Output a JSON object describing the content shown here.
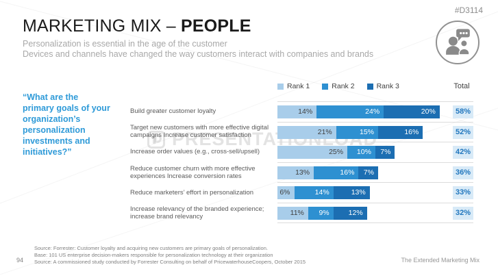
{
  "slide_id": "#D3114",
  "header": {
    "title_regular": "MARKETING MIX – ",
    "title_bold": "PEOPLE",
    "subtitle_line1": "Personalization is essential in the age of the customer",
    "subtitle_line2": "Devices and channels have changed the way customers interact with companies and brands"
  },
  "quote": "“What are the primary goals of your organization’s personalization investments and initiatives?”",
  "chart_data": {
    "type": "bar",
    "stacked": true,
    "orientation": "horizontal",
    "title": "",
    "xlabel": "",
    "ylabel": "",
    "xlim": [
      0,
      60
    ],
    "value_suffix": "%",
    "legend_position": "top",
    "total_header": "Total",
    "categories": [
      "Build greater customer loyalty",
      "Target new customers with more effective digital campaigns Increase customer satisfaction",
      "Increase order values (e.g., cross-sell/upsell)",
      "Reduce customer churn with more effective experiences Increase conversion rates",
      "Reduce marketers’ effort in personalization",
      "Increase relevancy of the branded experience; increase brand relevancy"
    ],
    "series": [
      {
        "name": "Rank 1",
        "color": "#A8CDEA",
        "values": [
          14,
          21,
          25,
          13,
          6,
          11
        ]
      },
      {
        "name": "Rank 2",
        "color": "#2E90D1",
        "values": [
          24,
          15,
          10,
          16,
          14,
          9
        ]
      },
      {
        "name": "Rank 3",
        "color": "#1C6EB2",
        "values": [
          20,
          16,
          7,
          7,
          13,
          12
        ]
      }
    ],
    "totals": [
      "58%",
      "52%",
      "42%",
      "36%",
      "33%",
      "32%"
    ]
  },
  "footer": {
    "page_number": "94",
    "source_lines": [
      "Source: Forrester: Customer loyalty and acquiring new customers are primary goals of personalization.",
      "Base: 101 US enterprise decision-makers responsible for personalization technology at their organization",
      "Source: A commissioned study conducted by Forrester Consulting on behalf of PricewaterhouseCoopers, October 2015"
    ],
    "footer_right": "The Extended Marketing Mix"
  },
  "watermark": {
    "text": "PRESENTATIONLOAD"
  },
  "colors": {
    "accent_blue": "#2E9AD8",
    "rank1": "#A8CDEA",
    "rank2": "#2E90D1",
    "rank3": "#1C6EB2",
    "total_bg": "#D8EAF7",
    "total_text": "#2277BE",
    "seg_text_dark": "#3F3F3F",
    "seg_text_light": "#FFFFFF"
  }
}
